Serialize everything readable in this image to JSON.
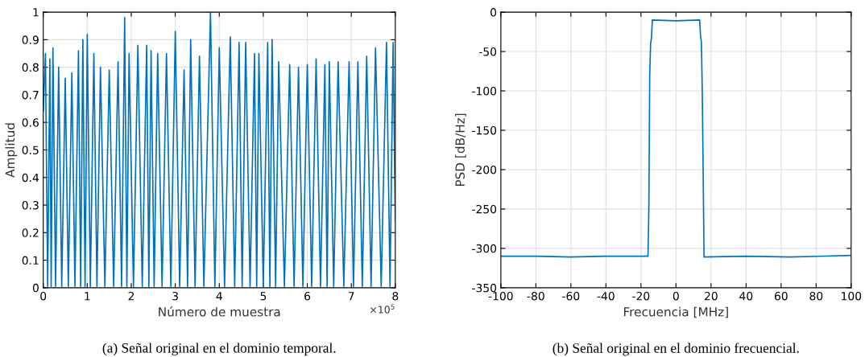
{
  "chart_data": [
    {
      "type": "line",
      "title": "(a) Señal original en el dominio temporal.",
      "xlabel": "Número de muestra",
      "ylabel": "Amplitud",
      "annotations": [
        "×10$^{5}$"
      ],
      "series": [
        {
          "color": "#0072bd",
          "x": [
            0,
            0.05,
            0.1,
            0.15,
            0.18,
            0.22,
            0.28,
            0.35,
            0.42,
            0.5,
            0.57,
            0.65,
            0.72,
            0.8,
            0.85,
            0.9,
            0.95,
            1.0,
            1.07,
            1.15,
            1.22,
            1.3,
            1.4,
            1.5,
            1.6,
            1.7,
            1.78,
            1.85,
            1.9,
            1.95,
            2.05,
            2.15,
            2.25,
            2.35,
            2.4,
            2.45,
            2.52,
            2.6,
            2.7,
            2.8,
            2.9,
            3.0,
            3.1,
            3.2,
            3.28,
            3.35,
            3.45,
            3.55,
            3.65,
            3.8,
            3.9,
            4.0,
            4.12,
            4.25,
            4.35,
            4.45,
            4.52,
            4.6,
            4.7,
            4.8,
            4.85,
            4.9,
            5.0,
            5.1,
            5.15,
            5.2,
            5.28,
            5.35,
            5.48,
            5.6,
            5.7,
            5.8,
            5.9,
            6.0,
            6.1,
            6.2,
            6.3,
            6.4,
            6.45,
            6.5,
            6.6,
            6.7,
            6.83,
            6.95,
            7.05,
            7.15,
            7.25,
            7.35,
            7.45,
            7.55,
            7.68,
            7.8,
            7.88,
            7.95,
            8.0
          ],
          "values": [
            0.64,
            0.85,
            0.005,
            0.83,
            0.005,
            0.87,
            0.005,
            0.8,
            0.005,
            0.76,
            0.005,
            0.78,
            0.005,
            0.86,
            0.005,
            0.9,
            0.005,
            0.92,
            0.005,
            0.85,
            0.005,
            0.8,
            0.005,
            0.79,
            0.005,
            0.82,
            0.005,
            0.98,
            0.005,
            0.85,
            0.005,
            0.88,
            0.005,
            0.88,
            0.005,
            0.86,
            0.005,
            0.85,
            0.005,
            0.85,
            0.005,
            0.93,
            0.005,
            0.79,
            0.005,
            0.9,
            0.005,
            0.84,
            0.005,
            1.0,
            0.005,
            0.87,
            0.005,
            0.91,
            0.005,
            0.89,
            0.005,
            0.89,
            0.005,
            0.85,
            0.005,
            0.85,
            0.005,
            0.89,
            0.005,
            0.9,
            0.005,
            0.82,
            0.005,
            0.81,
            0.005,
            0.8,
            0.005,
            0.81,
            0.005,
            0.83,
            0.005,
            0.81,
            0.005,
            0.82,
            0.005,
            0.82,
            0.005,
            0.82,
            0.005,
            0.82,
            0.005,
            0.84,
            0.005,
            0.87,
            0.005,
            0.89,
            0.005,
            0.89,
            0.24
          ]
        }
      ],
      "xlim": [
        0,
        8
      ],
      "xticks": [
        0,
        1,
        2,
        3,
        4,
        5,
        6,
        7,
        8
      ],
      "ylim": [
        0,
        1
      ],
      "yticks": [
        0,
        0.1,
        0.2,
        0.3,
        0.4,
        0.5,
        0.6,
        0.7,
        0.8,
        0.9,
        1
      ],
      "grid": true
    },
    {
      "type": "line",
      "title": "(b) Señal original en el dominio frecuencial.",
      "xlabel": "Frecuencia [MHz]",
      "ylabel": "PSD [dB/Hz]",
      "series": [
        {
          "color": "#0072bd",
          "x": [
            -100,
            -80,
            -60,
            -40,
            -20,
            -16,
            -15.5,
            -15,
            -14.5,
            -14,
            -13.5,
            0,
            13.5,
            14,
            14.5,
            15,
            15.5,
            16,
            40,
            65,
            100
          ],
          "values": [
            -310,
            -310,
            -311,
            -310,
            -310,
            -310,
            -250,
            -80,
            -40,
            -33,
            -10,
            -11,
            -10,
            -30,
            -38,
            -100,
            -200,
            -311,
            -310,
            -311,
            -309
          ]
        }
      ],
      "xlim": [
        -100,
        100
      ],
      "xticks": [
        -100,
        -80,
        -60,
        -40,
        -20,
        0,
        20,
        40,
        60,
        80,
        100
      ],
      "ylim": [
        -350,
        0
      ],
      "yticks": [
        -350,
        -300,
        -250,
        -200,
        -150,
        -100,
        -50,
        0
      ],
      "grid": true
    }
  ]
}
